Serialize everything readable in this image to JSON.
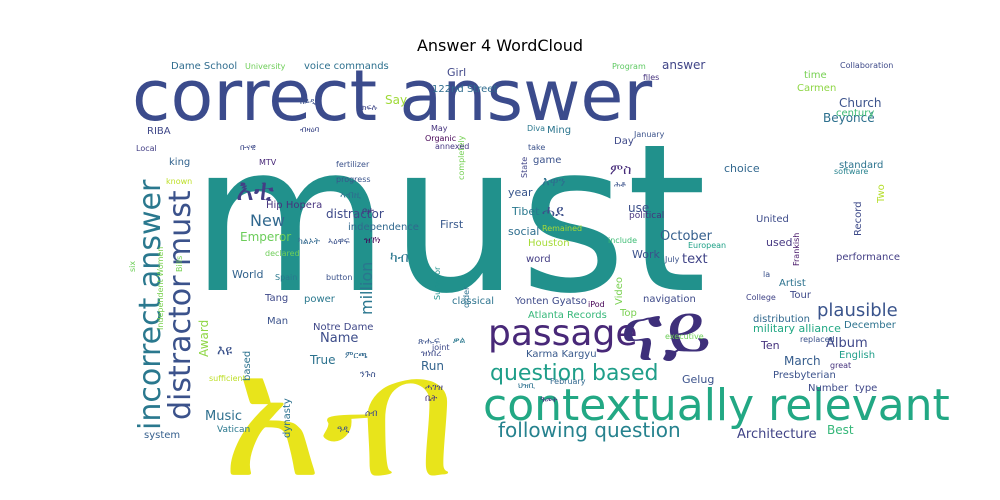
{
  "chart_data": {
    "type": "wordcloud",
    "title": "Answer 4 WordCloud",
    "colormap": "viridis",
    "background": "#ffffff",
    "words": [
      {
        "text": "must",
        "color": "#21918c"
      },
      {
        "text": "correct answer",
        "color": "#3b4b8c"
      },
      {
        "text": "አብ",
        "color": "#e8e41b"
      },
      {
        "text": "contextually relevant",
        "color": "#22a884"
      },
      {
        "text": "passage",
        "color": "#482878"
      },
      {
        "text": "ናይ",
        "color": "#3e2f7a"
      },
      {
        "text": "incorrect answer",
        "color": "#2a788e"
      },
      {
        "text": "distractor must",
        "color": "#3b528b"
      },
      {
        "text": "question based",
        "color": "#1f9e89"
      },
      {
        "text": "following question",
        "color": "#26828e"
      },
      {
        "text": "እቲ",
        "color": "#433e85"
      },
      {
        "text": "plausible",
        "color": "#3a548c"
      },
      {
        "text": "million",
        "color": "#2a768e"
      },
      {
        "text": "New",
        "color": "#31688e"
      },
      {
        "text": "Emperor",
        "color": "#6ccd5a"
      },
      {
        "text": "distractor",
        "color": "#3e4a89"
      },
      {
        "text": "October",
        "color": "#355f8d"
      },
      {
        "text": "text",
        "color": "#414487"
      },
      {
        "text": "Name",
        "color": "#3d4d8a"
      },
      {
        "text": "True",
        "color": "#2c728e"
      },
      {
        "text": "Music",
        "color": "#2e6f8e"
      },
      {
        "text": "World",
        "color": "#33638d"
      },
      {
        "text": "Album",
        "color": "#3f4889"
      },
      {
        "text": "March",
        "color": "#365d8d"
      },
      {
        "text": "Architecture",
        "color": "#414487"
      },
      {
        "text": "Best",
        "color": "#35b779"
      },
      {
        "text": "Church",
        "color": "#3b528b"
      },
      {
        "text": "Beyoncé",
        "color": "#2d708e"
      },
      {
        "text": "answer",
        "color": "#404588"
      },
      {
        "text": "Girl",
        "color": "#3f4788"
      },
      {
        "text": "122nd Street",
        "color": "#2f6c8e"
      },
      {
        "text": "Say",
        "color": "#a0da39"
      },
      {
        "text": "Ming",
        "color": "#2b758e"
      },
      {
        "text": "ምስ",
        "color": "#472c7a"
      },
      {
        "text": "እዋን",
        "color": "#2c718e"
      },
      {
        "text": "ሓደ",
        "color": "#3c4f8a"
      },
      {
        "text": "year",
        "color": "#39568c"
      },
      {
        "text": "use",
        "color": "#3c4f8a"
      },
      {
        "text": "Tibet",
        "color": "#2a788e"
      },
      {
        "text": "First",
        "color": "#38588c"
      },
      {
        "text": "social",
        "color": "#2e6e8e"
      },
      {
        "text": "word",
        "color": "#433d84"
      },
      {
        "text": "Work",
        "color": "#3b518b"
      },
      {
        "text": "used",
        "color": "#453781"
      },
      {
        "text": "United",
        "color": "#3e4c8a"
      },
      {
        "text": "choice",
        "color": "#31678e"
      },
      {
        "text": "standard",
        "color": "#2c738e"
      },
      {
        "text": "century",
        "color": "#3dbc74"
      },
      {
        "text": "time",
        "color": "#77d153"
      },
      {
        "text": "Carmen",
        "color": "#8ed645"
      },
      {
        "text": "Collaboration",
        "color": "#3e4a89"
      },
      {
        "text": "Program",
        "color": "#5ec962"
      },
      {
        "text": "files",
        "color": "#46337e"
      },
      {
        "text": "Dame School",
        "color": "#2f6c8e"
      },
      {
        "text": "University",
        "color": "#6ece58"
      },
      {
        "text": "voice commands",
        "color": "#2d708e"
      },
      {
        "text": "RIBA",
        "color": "#3f4788"
      },
      {
        "text": "king",
        "color": "#33638d"
      },
      {
        "text": "Local",
        "color": "#433e85"
      },
      {
        "text": "MTV",
        "color": "#482878"
      },
      {
        "text": "fertilizer",
        "color": "#3b528b"
      },
      {
        "text": "progress",
        "color": "#3a548c"
      },
      {
        "text": "Hip Hopera",
        "color": "#46337e"
      },
      {
        "text": "independence",
        "color": "#31688e"
      },
      {
        "text": "Tang",
        "color": "#3e4989"
      },
      {
        "text": "power",
        "color": "#2a788e"
      },
      {
        "text": "Man",
        "color": "#3b528b"
      },
      {
        "text": "Notre Dame",
        "color": "#3f4788"
      },
      {
        "text": "Vatican",
        "color": "#2a788e"
      },
      {
        "text": "system",
        "color": "#355f8d"
      },
      {
        "text": "dynasty",
        "color": "#2c718e"
      },
      {
        "text": "Atlanta Records",
        "color": "#35b779"
      },
      {
        "text": "Yonten Gyatso",
        "color": "#3e4a89"
      },
      {
        "text": "Karma Kargyu",
        "color": "#38598c"
      },
      {
        "text": "Run",
        "color": "#33638d"
      },
      {
        "text": "Houston",
        "color": "#a5db36"
      },
      {
        "text": "classical",
        "color": "#2c738e"
      },
      {
        "text": "Survivor",
        "color": "#21918c"
      },
      {
        "text": "navigation",
        "color": "#3e4a89"
      },
      {
        "text": "Video",
        "color": "#7ad151"
      },
      {
        "text": "Top",
        "color": "#7ad151"
      },
      {
        "text": "iPod",
        "color": "#440154"
      },
      {
        "text": "Gelug",
        "color": "#3b528b"
      },
      {
        "text": "Ten",
        "color": "#46337e"
      },
      {
        "text": "military alliance",
        "color": "#22a884"
      },
      {
        "text": "distribution",
        "color": "#31688e"
      },
      {
        "text": "Artist",
        "color": "#2c728e"
      },
      {
        "text": "Tour",
        "color": "#3e4989"
      },
      {
        "text": "College",
        "color": "#414487"
      },
      {
        "text": "December",
        "color": "#2c728e"
      },
      {
        "text": "English",
        "color": "#1f9e89"
      },
      {
        "text": "Presbyterian",
        "color": "#3b528b"
      },
      {
        "text": "Number",
        "color": "#3e4c8a"
      },
      {
        "text": "type",
        "color": "#3f4788"
      },
      {
        "text": "performance",
        "color": "#433e85"
      },
      {
        "text": "European",
        "color": "#1fa187"
      },
      {
        "text": "include",
        "color": "#3dbc74"
      },
      {
        "text": "July",
        "color": "#3b528b"
      },
      {
        "text": "political",
        "color": "#46337e"
      },
      {
        "text": "Remained",
        "color": "#a5db36"
      },
      {
        "text": "game",
        "color": "#3b528b"
      },
      {
        "text": "State",
        "color": "#414487"
      },
      {
        "text": "completely",
        "color": "#75d054"
      },
      {
        "text": "Day",
        "color": "#3e4989"
      },
      {
        "text": "January",
        "color": "#3b528b"
      },
      {
        "text": "annexed",
        "color": "#453882"
      },
      {
        "text": "Diva",
        "color": "#2a788e"
      },
      {
        "text": "take",
        "color": "#3b528b"
      },
      {
        "text": "Organic",
        "color": "#440154"
      },
      {
        "text": "May",
        "color": "#46337e"
      },
      {
        "text": "Independent Women",
        "color": "#7ad151"
      },
      {
        "text": "Award",
        "color": "#8ed645"
      },
      {
        "text": "Bills",
        "color": "#77d153"
      },
      {
        "text": "known",
        "color": "#bddf26"
      },
      {
        "text": "declared",
        "color": "#6ece58"
      },
      {
        "text": "Spain",
        "color": "#2a788e"
      },
      {
        "text": "button",
        "color": "#3b528b"
      },
      {
        "text": "six",
        "color": "#6ece58"
      },
      {
        "text": "sufficient",
        "color": "#bddf26"
      },
      {
        "text": "based",
        "color": "#2c728e"
      },
      {
        "text": "great",
        "color": "#46337e"
      },
      {
        "text": "replaced",
        "color": "#3b528b"
      },
      {
        "text": "executive",
        "color": "#6ece58"
      },
      {
        "text": "February",
        "color": "#31688e"
      },
      {
        "text": "joint",
        "color": "#3e4989"
      },
      {
        "text": "order",
        "color": "#2c718e"
      },
      {
        "text": "Frankish",
        "color": "#481769"
      },
      {
        "text": "Two",
        "color": "#b5de2b"
      },
      {
        "text": "la",
        "color": "#3b528b"
      },
      {
        "text": "software",
        "color": "#26828e"
      },
      {
        "text": "Record",
        "color": "#3e4a89"
      },
      {
        "text": "ካብ",
        "color": "#2a768e"
      },
      {
        "text": "እዩ",
        "color": "#3b528b"
      },
      {
        "text": "ቡናዊ",
        "color": "#3e4a89"
      },
      {
        "text": "ከይዲ",
        "color": "#3b528b"
      },
      {
        "text": "ክፍሉ",
        "color": "#3f4788"
      },
      {
        "text": "ብዛዕባ",
        "color": "#3e4989"
      },
      {
        "text": "ኣብዚ",
        "color": "#2c718e"
      },
      {
        "text": "ቦታ",
        "color": "#46337e"
      },
      {
        "text": "ካልኦት",
        "color": "#31688e"
      },
      {
        "text": "ኣዕዋፍ",
        "color": "#3b528b"
      },
      {
        "text": "ዝኾነ",
        "color": "#440154"
      },
      {
        "text": "ዝነበረ",
        "color": "#3e4a89"
      },
      {
        "text": "ሓገዝ",
        "color": "#433e85"
      },
      {
        "text": "ጽሑፍ",
        "color": "#3b528b"
      },
      {
        "text": "ቃል",
        "color": "#2a788e"
      },
      {
        "text": "ምርጫ",
        "color": "#31688e"
      },
      {
        "text": "ንጉስ",
        "color": "#3b528b"
      },
      {
        "text": "ቤት",
        "color": "#46337e"
      },
      {
        "text": "ሰብ",
        "color": "#3e4989"
      },
      {
        "text": "ዓዲ",
        "color": "#3b528b"
      },
      {
        "text": "ህዝቢ",
        "color": "#2c718e"
      },
      {
        "text": "ዓመት",
        "color": "#46337e"
      },
      {
        "text": "ሕቶ",
        "color": "#3b528b"
      },
      {
        "text": "መልሲ",
        "color": "#3e4a89"
      },
      {
        "text": "ግዜ",
        "color": "#31688e"
      },
      {
        "text": "ቁጽሪ",
        "color": "#440154"
      },
      {
        "text": "ዓለም",
        "color": "#3b528b"
      }
    ]
  }
}
